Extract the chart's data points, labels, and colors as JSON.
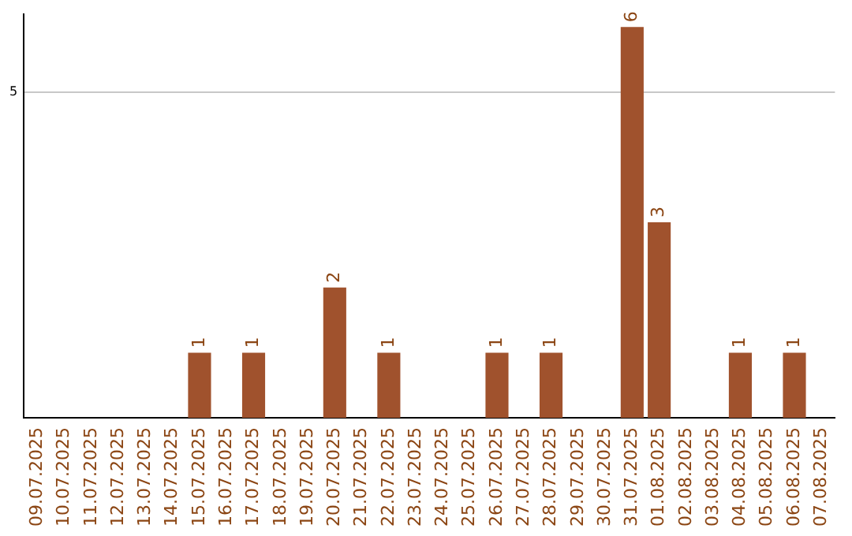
{
  "chart_data": {
    "type": "bar",
    "categories": [
      "09.07.2025",
      "10.07.2025",
      "11.07.2025",
      "12.07.2025",
      "13.07.2025",
      "14.07.2025",
      "15.07.2025",
      "16.07.2025",
      "17.07.2025",
      "18.07.2025",
      "19.07.2025",
      "20.07.2025",
      "21.07.2025",
      "22.07.2025",
      "23.07.2025",
      "24.07.2025",
      "25.07.2025",
      "26.07.2025",
      "27.07.2025",
      "28.07.2025",
      "29.07.2025",
      "30.07.2025",
      "31.07.2025",
      "01.08.2025",
      "02.08.2025",
      "03.08.2025",
      "04.08.2025",
      "05.08.2025",
      "06.08.2025",
      "07.08.2025"
    ],
    "values": [
      0,
      0,
      0,
      0,
      0,
      0,
      1,
      0,
      1,
      0,
      0,
      2,
      0,
      1,
      0,
      0,
      0,
      1,
      0,
      1,
      0,
      0,
      6,
      3,
      0,
      0,
      1,
      0,
      1,
      0
    ],
    "value_labels": [
      null,
      null,
      null,
      null,
      null,
      null,
      "1",
      null,
      "1",
      null,
      null,
      "2",
      null,
      "1",
      null,
      null,
      null,
      "1",
      null,
      "1",
      null,
      null,
      "6",
      "3",
      null,
      null,
      "1",
      null,
      "1",
      null
    ],
    "color": "#a0522d",
    "ylim": [
      0,
      6.2
    ],
    "yticks": [
      5
    ],
    "grid": "y",
    "legend": false
  }
}
